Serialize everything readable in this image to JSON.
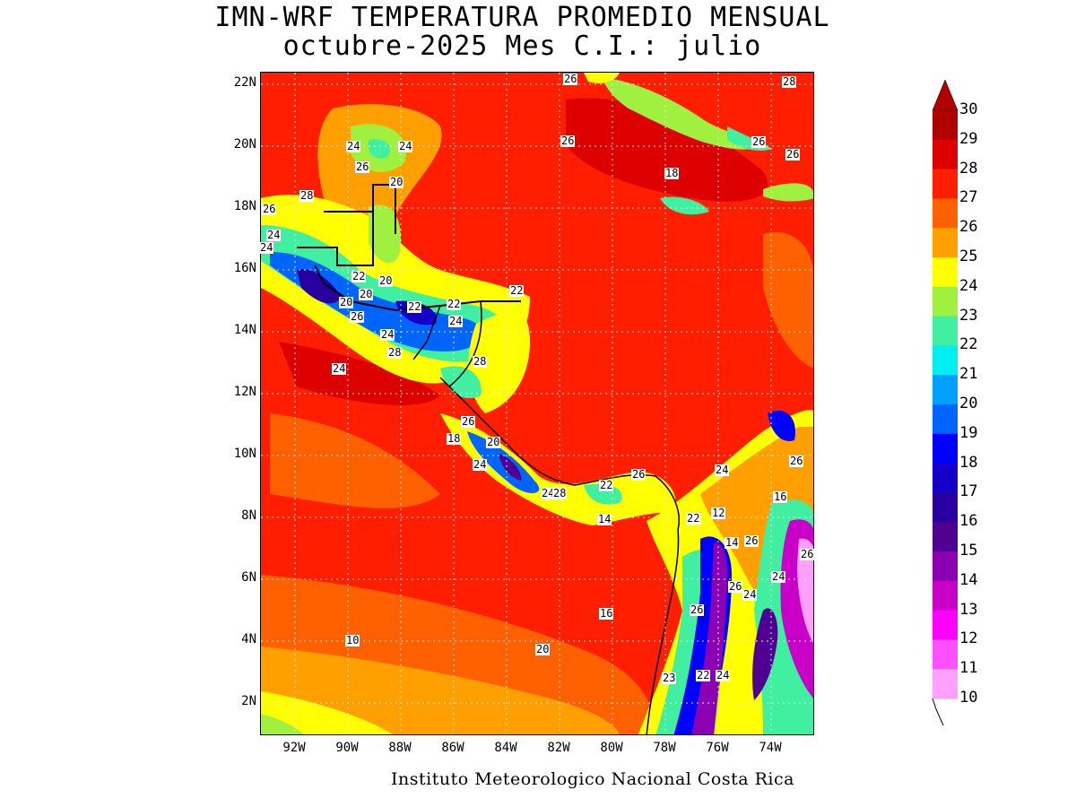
{
  "title_line1": "IMN-WRF  TEMPERATURA PROMEDIO MENSUAL",
  "title_line2": "octubre-2025 Mes C.I.: julio",
  "footer": "Instituto Meteorologico Nacional Costa Rica",
  "lat_labels": [
    "22N",
    "20N",
    "18N",
    "16N",
    "14N",
    "12N",
    "10N",
    "8N",
    "6N",
    "4N",
    "2N"
  ],
  "lon_labels": [
    "92W",
    "90W",
    "88W",
    "86W",
    "84W",
    "82W",
    "80W",
    "78W",
    "76W",
    "74W"
  ],
  "colorbar": {
    "levels": [
      "30",
      "29",
      "28",
      "27",
      "26",
      "25",
      "24",
      "23",
      "22",
      "21",
      "20",
      "19",
      "18",
      "17",
      "16",
      "15",
      "14",
      "13",
      "12",
      "11",
      "10"
    ],
    "colors": [
      "#b00000",
      "#dc0000",
      "#ff1e00",
      "#ff6000",
      "#ffa000",
      "#ffff00",
      "#a0f040",
      "#40f0a0",
      "#00f0f0",
      "#00a0ff",
      "#0064ff",
      "#0000ff",
      "#1400c8",
      "#2800a0",
      "#500090",
      "#8c00b4",
      "#c800c8",
      "#ff00ff",
      "#ff50ff",
      "#ffa0ff"
    ]
  },
  "map_colors": {
    "sea_warm": "#ff1e00",
    "sea_hot": "#dc0000",
    "sea_mild": "#ff6000",
    "sea_cool": "#ffa000",
    "grid": "#e0e0e0"
  },
  "contour_labels": [
    "26",
    "28",
    "24",
    "24",
    "26",
    "26",
    "26",
    "26",
    "18",
    "20",
    "28",
    "26",
    "24",
    "24",
    "22",
    "20",
    "20",
    "20",
    "22",
    "22",
    "24",
    "26",
    "24",
    "28",
    "24",
    "28",
    "22",
    "26",
    "18",
    "20",
    "24",
    "24",
    "28",
    "22",
    "26",
    "24",
    "26",
    "16",
    "22",
    "12",
    "14",
    "14",
    "26",
    "26",
    "24",
    "26",
    "24",
    "26",
    "16",
    "10",
    "20",
    "23",
    "22",
    "24"
  ]
}
